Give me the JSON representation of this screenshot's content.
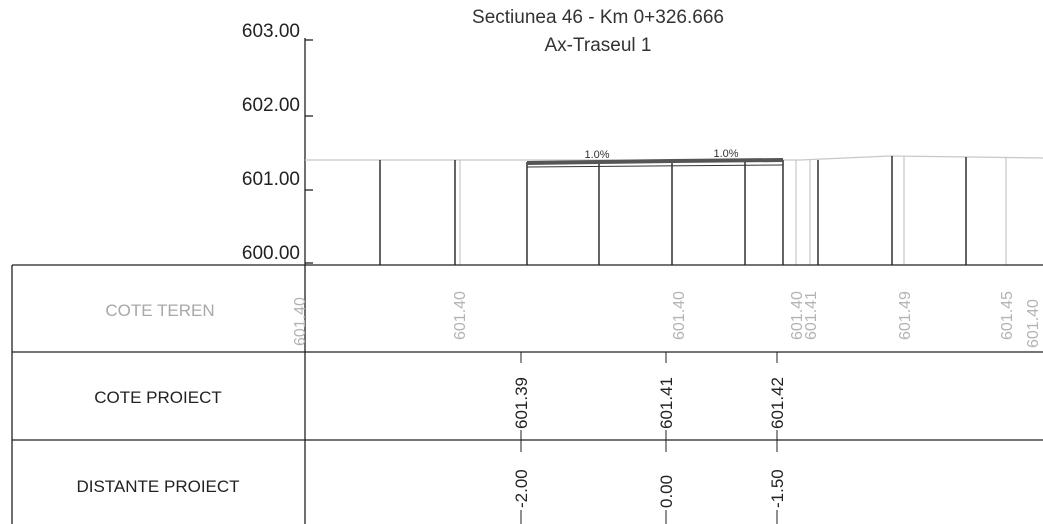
{
  "title": {
    "line1": "Sectiunea 46 - Km 0+326.666",
    "line2": "Ax-Traseul 1"
  },
  "elevation_axis": {
    "labels": [
      "603.00",
      "602.00",
      "601.00",
      "600.00"
    ]
  },
  "slopes": [
    "1.0%",
    "1.0%"
  ],
  "table": {
    "rows": [
      {
        "label": "COTE TEREN",
        "values": [
          "601.40",
          "601.40",
          "601.40",
          "601.40",
          "601.41",
          "601.49",
          "601.45",
          "601.40"
        ]
      },
      {
        "label": "COTE PROIECT",
        "values": [
          "601.39",
          "601.41",
          "601.42"
        ]
      },
      {
        "label": "DISTANTE PROIECT",
        "values": [
          "-2.00",
          "0.00",
          "-1.50"
        ]
      }
    ]
  },
  "colors": {
    "ink": "#222222",
    "ground_line": "#c8c8c8",
    "terrain_values": "#b4b4b4",
    "design_line": "#555555"
  }
}
